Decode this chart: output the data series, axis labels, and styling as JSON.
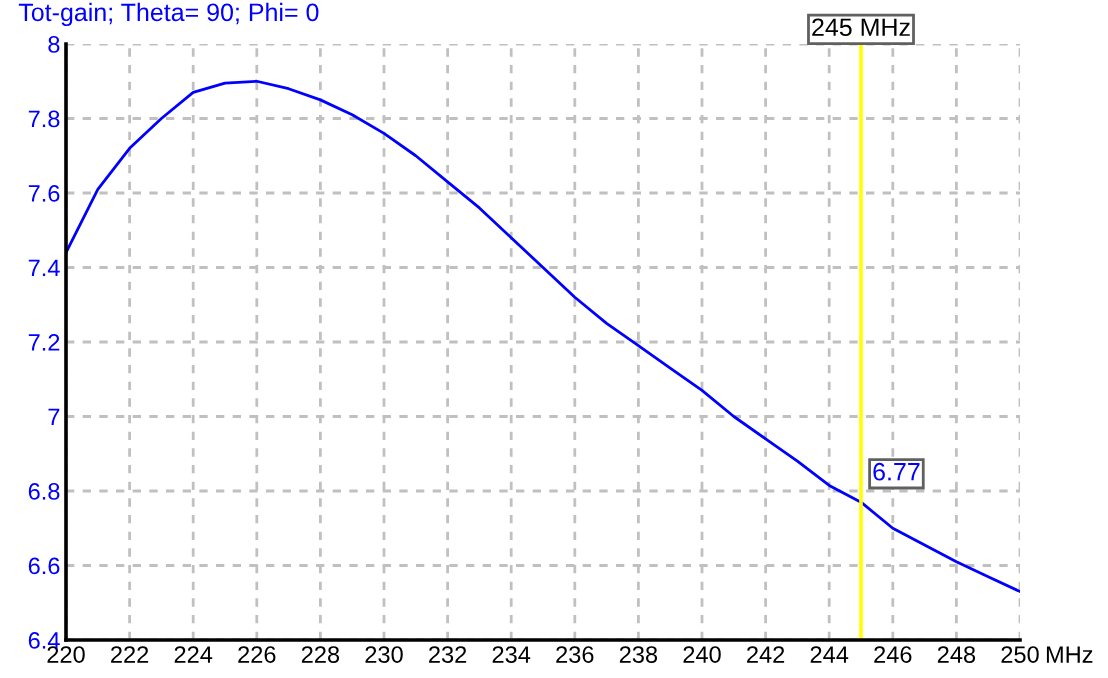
{
  "chart_data": {
    "type": "line",
    "title": "Tot-gain; Theta= 90; Phi= 0",
    "xlabel": "MHz",
    "x": [
      220,
      221,
      222,
      223,
      224,
      225,
      226,
      227,
      228,
      229,
      230,
      231,
      232,
      233,
      234,
      235,
      236,
      237,
      238,
      239,
      240,
      241,
      242,
      243,
      244,
      245,
      246,
      247,
      248,
      249,
      250
    ],
    "series": [
      {
        "color": "#0000ff",
        "values": [
          7.44,
          7.61,
          7.72,
          7.8,
          7.87,
          7.895,
          7.9,
          7.88,
          7.85,
          7.81,
          7.76,
          7.7,
          7.63,
          7.56,
          7.48,
          7.4,
          7.32,
          7.25,
          7.19,
          7.13,
          7.07,
          7.0,
          6.94,
          6.88,
          6.815,
          6.77,
          6.7,
          6.655,
          6.61,
          6.57,
          6.53
        ]
      }
    ],
    "xlim": [
      220,
      250
    ],
    "ylim": [
      6.4,
      8
    ],
    "xticks": [
      220,
      222,
      224,
      226,
      228,
      230,
      232,
      234,
      236,
      238,
      240,
      242,
      244,
      246,
      248,
      250
    ],
    "yticks": [
      6.4,
      6.6,
      6.8,
      7,
      7.2,
      7.4,
      7.6,
      7.8,
      8
    ],
    "grid": true,
    "marker": "none",
    "line_style": "solid",
    "ref_lines": [
      {
        "axis": "x",
        "value": 245,
        "label": "245 MHz",
        "color": "#ffff00"
      }
    ],
    "annotations": [
      {
        "text": "6.77",
        "x": 245,
        "y": 6.77
      }
    ]
  }
}
